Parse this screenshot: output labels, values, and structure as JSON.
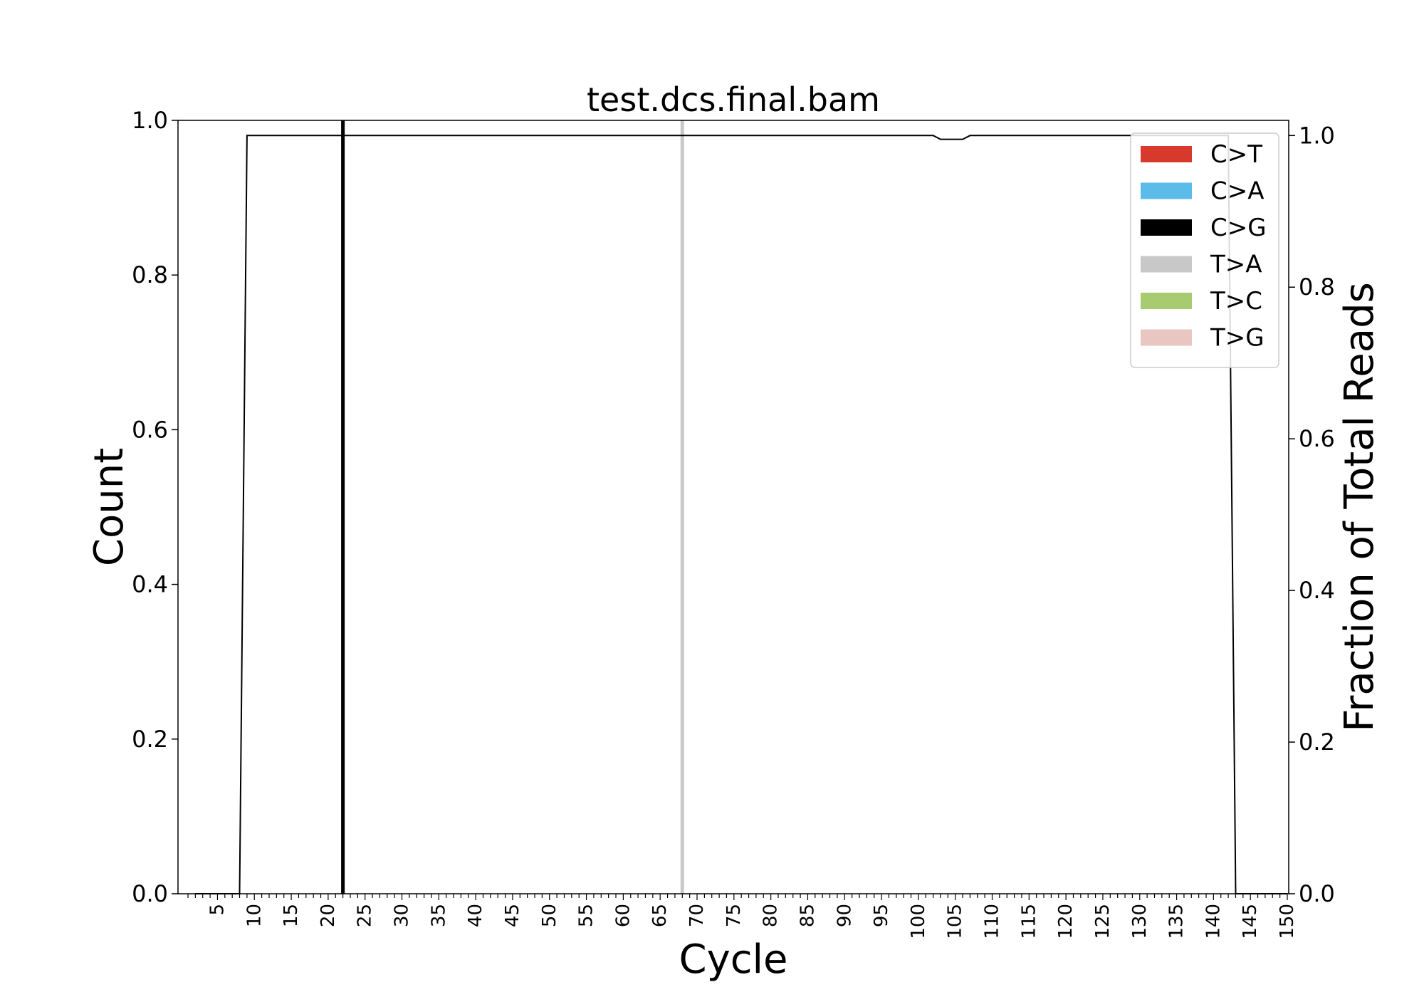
{
  "chart_data": {
    "type": "bar",
    "title": "test.dcs.final.bam",
    "xlabel": "Cycle",
    "ylabel": "Count",
    "y2label": "Fraction of Total Reads",
    "xlim": [
      1,
      150
    ],
    "ylim": [
      0,
      1.0
    ],
    "y2lim": [
      0,
      1.02
    ],
    "x_ticks": [
      "5",
      "10",
      "15",
      "20",
      "25",
      "30",
      "35",
      "40",
      "45",
      "50",
      "55",
      "60",
      "65",
      "70",
      "75",
      "80",
      "85",
      "90",
      "95",
      "100",
      "105",
      "110",
      "115",
      "120",
      "125",
      "130",
      "135",
      "140",
      "145",
      "150"
    ],
    "y_ticks": [
      "0.0",
      "0.2",
      "0.4",
      "0.6",
      "0.8",
      "1.0"
    ],
    "y2_ticks": [
      "0.0",
      "0.2",
      "0.4",
      "0.6",
      "0.8",
      "1.0"
    ],
    "legend_position": "top-right",
    "grid": false,
    "series": [
      {
        "name": "C>T",
        "color": "#d73a2c",
        "points": []
      },
      {
        "name": "C>A",
        "color": "#5bbbe9",
        "points": []
      },
      {
        "name": "C>G",
        "color": "#000000",
        "points": [
          {
            "x": 22,
            "y": 1.0
          }
        ]
      },
      {
        "name": "T>A",
        "color": "#c8c8c8",
        "points": [
          {
            "x": 68,
            "y": 1.0
          }
        ]
      },
      {
        "name": "T>C",
        "color": "#a8cb72",
        "points": []
      },
      {
        "name": "T>G",
        "color": "#e9c6c2",
        "points": []
      }
    ],
    "fraction_line": {
      "axis": "right",
      "color": "#000000",
      "points": [
        [
          2,
          0
        ],
        [
          8,
          0
        ],
        [
          9,
          1.0
        ],
        [
          102,
          1.0
        ],
        [
          103,
          0.995
        ],
        [
          106,
          0.995
        ],
        [
          107,
          1.0
        ],
        [
          142,
          1.0
        ],
        [
          143,
          0
        ],
        [
          150,
          0
        ]
      ]
    }
  }
}
